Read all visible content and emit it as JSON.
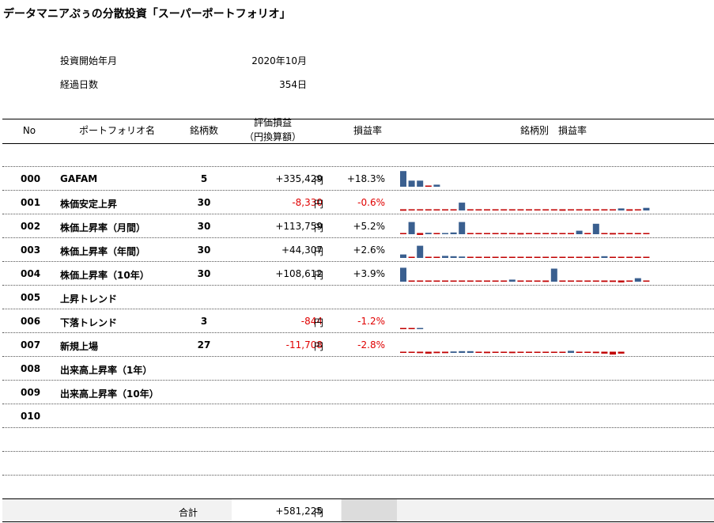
{
  "title": "データマニアぷぅの分散投資「スーパーポートフォリオ」",
  "meta": {
    "start_label": "投資開始年月",
    "start_value": "2020年10月",
    "days_label": "経過日数",
    "days_value": "354日"
  },
  "headers": {
    "no": "No",
    "name": "ポートフォリオ名",
    "count": "銘柄数",
    "value_line1": "評価損益",
    "value_line2": "（円換算額）",
    "rate": "損益率",
    "spark": "銘柄別　損益率"
  },
  "yen": "円",
  "rows": [
    {
      "no": "000",
      "name": "GAFAM",
      "count": "5",
      "value": "+335,429",
      "rate": "+18.3%",
      "neg": false,
      "spark": [
        0.9,
        0.35,
        0.35,
        -0.08,
        0.12
      ]
    },
    {
      "no": "001",
      "name": "株価安定上昇",
      "count": "30",
      "value": "-8,330",
      "rate": "-0.6%",
      "neg": true,
      "spark": [
        -0.15,
        -0.05,
        -0.05,
        -0.08,
        -0.05,
        -0.05,
        -0.1,
        0.45,
        -0.1,
        -0.08,
        -0.05,
        -0.05,
        -0.12,
        -0.1,
        -0.08,
        -0.05,
        -0.05,
        -0.08,
        -0.05,
        -0.15,
        -0.1,
        -0.1,
        -0.12,
        -0.12,
        -0.1,
        -0.12,
        0.12,
        -0.15,
        -0.1,
        0.15
      ]
    },
    {
      "no": "002",
      "name": "株価上昇率（月間）",
      "count": "30",
      "value": "+113,759",
      "rate": "+5.2%",
      "neg": false,
      "spark": [
        -0.12,
        0.7,
        -0.2,
        0.08,
        -0.05,
        0.05,
        0.1,
        0.7,
        -0.05,
        -0.05,
        -0.05,
        -0.05,
        -0.08,
        -0.1,
        -0.15,
        -0.12,
        -0.1,
        -0.05,
        -0.08,
        -0.1,
        -0.05,
        0.2,
        -0.08,
        0.6,
        -0.12,
        -0.15,
        -0.12,
        -0.1,
        -0.1,
        -0.08
      ]
    },
    {
      "no": "003",
      "name": "株価上昇率（年間）",
      "count": "30",
      "value": "+44,307",
      "rate": "+2.6%",
      "neg": false,
      "spark": [
        0.2,
        -0.12,
        0.7,
        -0.05,
        -0.05,
        0.12,
        0.1,
        0.08,
        -0.08,
        -0.08,
        -0.05,
        -0.05,
        -0.05,
        -0.08,
        -0.1,
        -0.1,
        -0.08,
        -0.08,
        -0.12,
        -0.1,
        -0.08,
        -0.1,
        -0.12,
        -0.1,
        0.1,
        -0.12,
        -0.1,
        -0.08,
        -0.08,
        -0.05
      ]
    },
    {
      "no": "004",
      "name": "株価上昇率（10年）",
      "count": "30",
      "value": "+108,612",
      "rate": "+3.9%",
      "neg": false,
      "spark": [
        0.8,
        -0.1,
        -0.05,
        -0.08,
        -0.05,
        -0.08,
        -0.1,
        -0.08,
        -0.1,
        -0.12,
        -0.08,
        -0.05,
        -0.05,
        0.12,
        -0.1,
        -0.12,
        -0.12,
        -0.15,
        0.75,
        -0.08,
        -0.1,
        -0.1,
        -0.12,
        -0.12,
        -0.15,
        -0.15,
        -0.2,
        -0.1,
        0.2,
        -0.08
      ]
    },
    {
      "no": "005",
      "name": "上昇トレンド",
      "count": "",
      "value": "",
      "rate": "",
      "neg": false,
      "spark": []
    },
    {
      "no": "006",
      "name": "下落トレンド",
      "count": "3",
      "value": "-844",
      "rate": "-1.2%",
      "neg": true,
      "spark": [
        -0.08,
        -0.1,
        0.06
      ]
    },
    {
      "no": "007",
      "name": "新規上場",
      "count": "27",
      "value": "-11,708",
      "rate": "-2.8%",
      "neg": true,
      "spark": [
        -0.12,
        -0.12,
        -0.15,
        -0.2,
        -0.15,
        -0.15,
        0.08,
        0.1,
        0.1,
        -0.08,
        -0.15,
        -0.12,
        -0.12,
        -0.15,
        -0.12,
        -0.12,
        -0.12,
        -0.12,
        -0.12,
        -0.12,
        0.12,
        -0.08,
        -0.08,
        -0.15,
        -0.2,
        -0.3,
        -0.2
      ]
    },
    {
      "no": "008",
      "name": "出来高上昇率（1年）",
      "count": "",
      "value": "",
      "rate": "",
      "neg": false,
      "spark": []
    },
    {
      "no": "009",
      "name": "出来高上昇率（10年）",
      "count": "",
      "value": "",
      "rate": "",
      "neg": false,
      "spark": []
    },
    {
      "no": "010",
      "name": "",
      "count": "",
      "value": "",
      "rate": "",
      "neg": false,
      "spark": []
    }
  ],
  "total": {
    "label": "合計",
    "value": "+581,225",
    "yen": "円"
  },
  "colors": {
    "positive": "#3a5f8f",
    "negative": "#c00000",
    "neg_text": "#e00000"
  }
}
